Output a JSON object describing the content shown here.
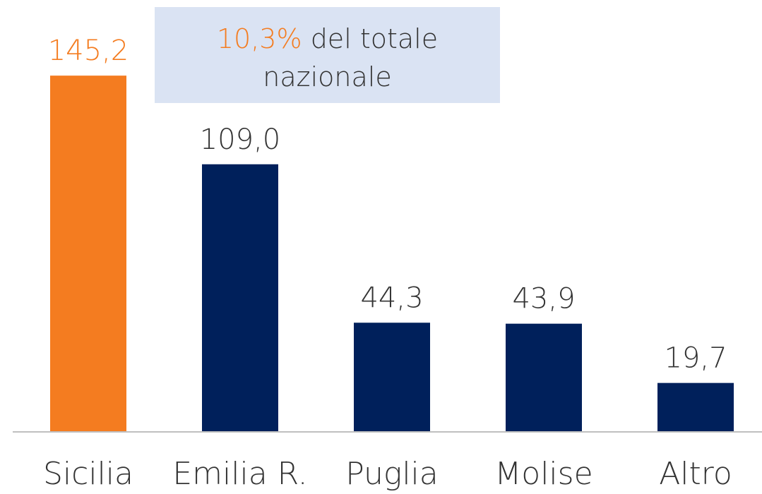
{
  "chart_data": {
    "type": "bar",
    "categories": [
      "Sicilia",
      "Emilia R.",
      "Puglia",
      "Molise",
      "Altro"
    ],
    "values": [
      145.2,
      109.0,
      44.3,
      43.9,
      19.7
    ],
    "value_labels": [
      "145,2",
      "109,0",
      "44,3",
      "43,9",
      "19,7"
    ],
    "colors": [
      "#f47c20",
      "#00205b",
      "#00205b",
      "#00205b",
      "#00205b"
    ],
    "value_label_colors": [
      "#f47c20",
      "#333333",
      "#333333",
      "#333333",
      "#333333"
    ],
    "annotation": {
      "highlight": "10,3%",
      "highlight_color": "#f47c20",
      "text": "del totale nazionale"
    }
  }
}
